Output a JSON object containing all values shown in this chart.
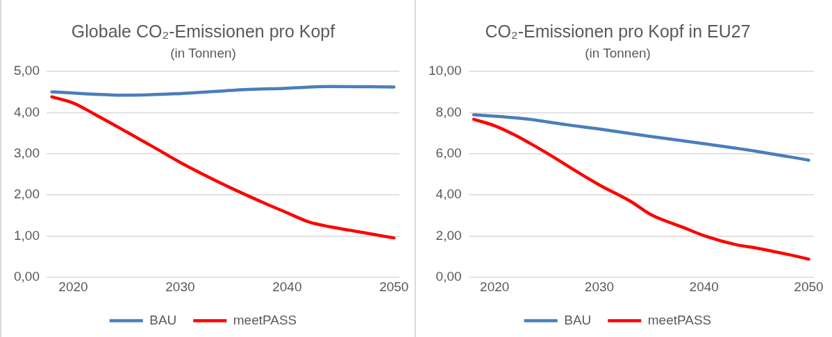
{
  "chart_data": [
    {
      "type": "line",
      "title": "Globale CO₂-Emissionen pro Kopf",
      "subtitle": "(in Tonnen)",
      "xlim": [
        2017.5,
        2050.5
      ],
      "xticks": [
        2020,
        2030,
        2040,
        2050
      ],
      "ylim": [
        0,
        5
      ],
      "yticks": [
        {
          "value": 0,
          "label": "0,00"
        },
        {
          "value": 1,
          "label": "1,00"
        },
        {
          "value": 2,
          "label": "2,00"
        },
        {
          "value": 3,
          "label": "3,00"
        },
        {
          "value": 4,
          "label": "4,00"
        },
        {
          "value": 5,
          "label": "5,00"
        }
      ],
      "grid": "y",
      "legend": "bottom",
      "marker": "none",
      "line_style": "solid",
      "series": [
        {
          "name": "BAU",
          "color": "#4a7ebb",
          "x": [
            2018,
            2025,
            2030,
            2035,
            2040,
            2044,
            2050
          ],
          "values": [
            4.5,
            4.42,
            4.46,
            4.54,
            4.59,
            4.63,
            4.62
          ]
        },
        {
          "name": "meetPASS",
          "color": "#ff0000",
          "x": [
            2018,
            2020,
            2022,
            2025,
            2028,
            2030,
            2033,
            2035,
            2038,
            2040,
            2042,
            2044,
            2046,
            2048,
            2050
          ],
          "values": [
            4.38,
            4.23,
            3.96,
            3.53,
            3.09,
            2.79,
            2.39,
            2.14,
            1.79,
            1.57,
            1.35,
            1.23,
            1.14,
            1.05,
            0.96
          ]
        }
      ]
    },
    {
      "type": "line",
      "title": "CO₂-Emissionen pro Kopf in EU27",
      "subtitle": "(in Tonnen)",
      "xlim": [
        2017.5,
        2050.5
      ],
      "xticks": [
        2020,
        2030,
        2040,
        2050
      ],
      "ylim": [
        0,
        10
      ],
      "yticks": [
        {
          "value": 0,
          "label": "0,00"
        },
        {
          "value": 2,
          "label": "2,00"
        },
        {
          "value": 4,
          "label": "4,00"
        },
        {
          "value": 6,
          "label": "6,00"
        },
        {
          "value": 8,
          "label": "8,00"
        },
        {
          "value": 10,
          "label": "10,00"
        }
      ],
      "grid": "y",
      "legend": "bottom",
      "marker": "none",
      "line_style": "solid",
      "series": [
        {
          "name": "BAU",
          "color": "#4a7ebb",
          "x": [
            2018,
            2023,
            2027,
            2030,
            2035,
            2040,
            2045,
            2050
          ],
          "values": [
            7.89,
            7.69,
            7.4,
            7.2,
            6.83,
            6.49,
            6.12,
            5.69
          ]
        },
        {
          "name": "meetPASS",
          "color": "#ff0000",
          "x": [
            2018,
            2020,
            2022,
            2025,
            2028,
            2030,
            2033,
            2035,
            2038,
            2040,
            2043,
            2045,
            2048,
            2050
          ],
          "values": [
            7.67,
            7.36,
            6.89,
            6.03,
            5.09,
            4.49,
            3.69,
            3.03,
            2.43,
            2.03,
            1.6,
            1.43,
            1.12,
            0.89
          ]
        }
      ]
    }
  ]
}
